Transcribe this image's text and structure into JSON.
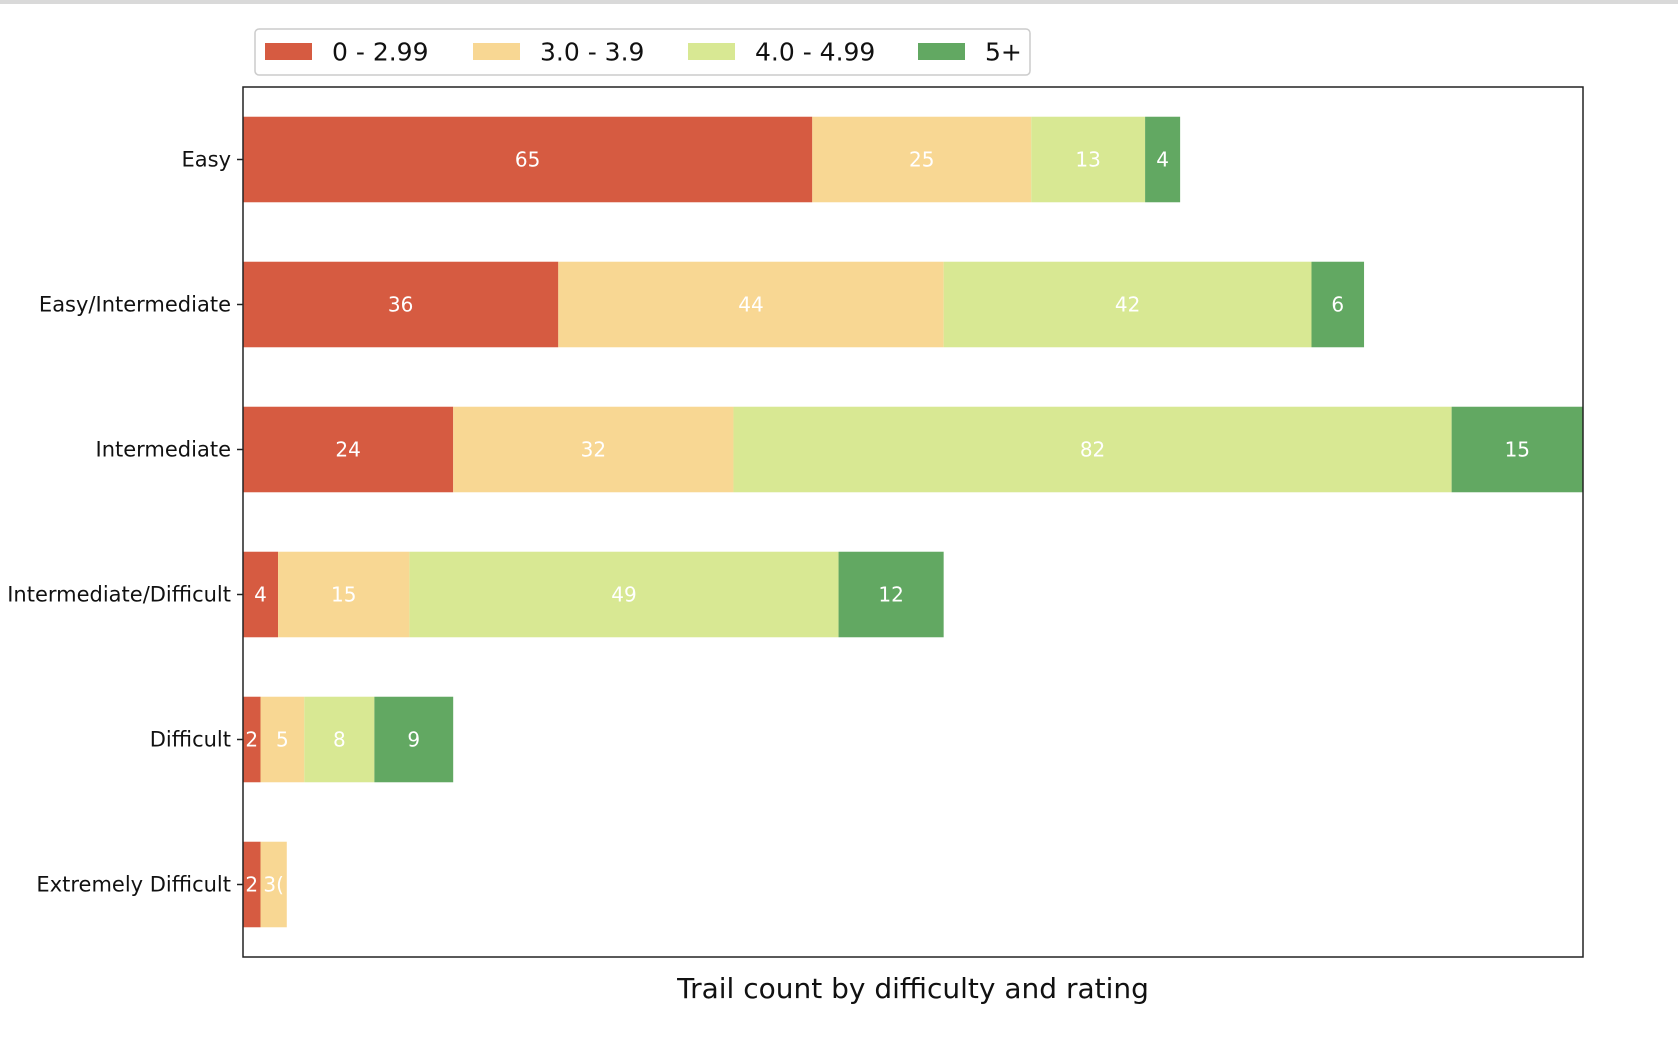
{
  "chart_data": {
    "type": "bar",
    "orientation": "horizontal",
    "stacked": true,
    "categories": [
      "Easy",
      "Easy/Intermediate",
      "Intermediate",
      "Intermediate/Difficult",
      "Difficult",
      "Extremely Difficult"
    ],
    "series": [
      {
        "name": "0 - 2.99",
        "color": "#d65b41",
        "values": [
          65,
          36,
          24,
          4,
          2,
          2
        ]
      },
      {
        "name": "3.0 - 3.9",
        "color": "#f8d793",
        "values": [
          25,
          44,
          32,
          15,
          5,
          3
        ]
      },
      {
        "name": "4.0 - 4.99",
        "color": "#d8e893",
        "values": [
          13,
          42,
          82,
          49,
          8,
          0
        ]
      },
      {
        "name": "5+",
        "color": "#62a862",
        "values": [
          4,
          6,
          15,
          12,
          9,
          0
        ]
      }
    ],
    "bar_labels": [
      [
        "65",
        "25",
        "13",
        "4"
      ],
      [
        "36",
        "44",
        "42",
        "6"
      ],
      [
        "24",
        "32",
        "82",
        "15"
      ],
      [
        "4",
        "15",
        "49",
        "12"
      ],
      [
        "2",
        "5",
        "8",
        "9"
      ],
      [
        "2",
        "3(",
        "",
        ""
      ]
    ],
    "xlim": [
      0,
      153
    ],
    "x_ticks_visible": false,
    "xlabel": "Trail count by difficulty and rating",
    "ylabel": "",
    "grid": false,
    "legend_position": "top-left"
  }
}
